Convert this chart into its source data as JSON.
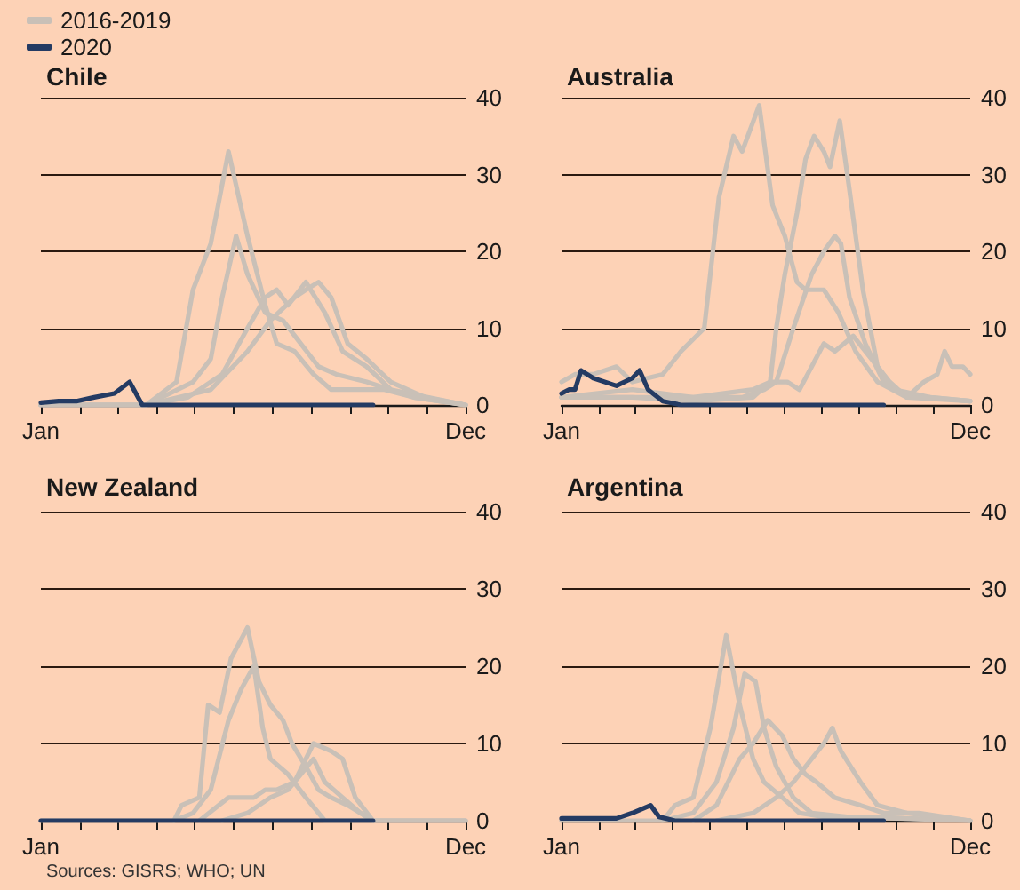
{
  "chart_data": [
    {
      "type": "line",
      "title": "Chile",
      "legend": "top left",
      "grid": "y",
      "marker": "none",
      "line_style": "solid",
      "xlim": [
        "--01-01",
        "--12-01"
      ],
      "xticks": [
        {
          "value": "--01-01",
          "label": "Jan"
        },
        {
          "value": "--02-01",
          "label": null
        },
        {
          "value": "--03-01",
          "label": null
        },
        {
          "value": "--04-01",
          "label": null
        },
        {
          "value": "--05-01",
          "label": null
        },
        {
          "value": "--06-01",
          "label": null
        },
        {
          "value": "--07-01",
          "label": null
        },
        {
          "value": "--08-01",
          "label": null
        },
        {
          "value": "--09-01",
          "label": null
        },
        {
          "value": "--10-01",
          "label": null
        },
        {
          "value": "--11-01",
          "label": null
        },
        {
          "value": "--12-01",
          "label": "Dec"
        }
      ],
      "ylim": [
        0,
        40
      ],
      "yticks": [
        0,
        10,
        20,
        30,
        40
      ],
      "series": [
        {
          "name": "2016-2019",
          "color": "#c9c0b7",
          "x": [
            "--01-01",
            "--03-24",
            "--04-17",
            "--04-30",
            "--05-14",
            "--05-28",
            "--06-12",
            "--06-26",
            "--07-05",
            "--07-19",
            "--08-03",
            "--08-17",
            "--09-05",
            "--09-28",
            "--10-21",
            "--12-01"
          ],
          "values": [
            0,
            0,
            3,
            15,
            21,
            33,
            22,
            13,
            8,
            7,
            4,
            2,
            2,
            2,
            1,
            0
          ]
        },
        {
          "color": "#c9c0b7",
          "x": [
            "--01-01",
            "--03-24",
            "--04-30",
            "--05-14",
            "--05-23",
            "--06-03",
            "--06-12",
            "--06-26",
            "--07-10",
            "--07-24",
            "--08-07",
            "--08-21",
            "--09-14",
            "--10-21",
            "--12-01"
          ],
          "values": [
            0,
            0,
            3,
            6,
            14,
            22,
            17,
            12,
            11,
            8,
            5,
            4,
            3,
            1,
            0
          ]
        },
        {
          "color": "#c9c0b7",
          "x": [
            "--01-01",
            "--03-24",
            "--04-26",
            "--05-23",
            "--06-12",
            "--06-26",
            "--07-05",
            "--07-14",
            "--07-28",
            "--08-12",
            "--08-26",
            "--09-14",
            "--10-03",
            "--12-01"
          ],
          "values": [
            0,
            0,
            1,
            4,
            10,
            14,
            15,
            13,
            16,
            12,
            7,
            5,
            2,
            0
          ]
        },
        {
          "color": "#c9c0b7",
          "x": [
            "--01-01",
            "--03-24",
            "--05-14",
            "--06-12",
            "--06-30",
            "--07-19",
            "--07-28",
            "--08-07",
            "--08-17",
            "--08-30",
            "--09-14",
            "--10-03",
            "--10-30",
            "--12-01"
          ],
          "values": [
            0,
            0,
            2,
            7,
            11,
            14,
            15,
            16,
            14,
            8,
            6,
            3,
            1,
            0
          ]
        },
        {
          "name": "2020",
          "color": "#243b63",
          "x": [
            "--01-01",
            "--01-15",
            "--01-29",
            "--02-12",
            "--02-28",
            "--03-11",
            "--03-21",
            "--04-17",
            "--09-19"
          ],
          "values": [
            0.3,
            0.5,
            0.5,
            1,
            1.5,
            3,
            0,
            0,
            0
          ]
        }
      ]
    },
    {
      "type": "line",
      "title": "Australia",
      "grid": "y",
      "marker": "none",
      "line_style": "solid",
      "xlim": [
        "--01-01",
        "--12-01"
      ],
      "xticks": [
        {
          "value": "--01-01",
          "label": "Jan"
        },
        {
          "value": "--02-01",
          "label": null
        },
        {
          "value": "--03-01",
          "label": null
        },
        {
          "value": "--04-01",
          "label": null
        },
        {
          "value": "--05-01",
          "label": null
        },
        {
          "value": "--06-01",
          "label": null
        },
        {
          "value": "--07-01",
          "label": null
        },
        {
          "value": "--08-01",
          "label": null
        },
        {
          "value": "--09-01",
          "label": null
        },
        {
          "value": "--10-01",
          "label": null
        },
        {
          "value": "--11-01",
          "label": null
        },
        {
          "value": "--12-01",
          "label": "Dec"
        }
      ],
      "ylim": [
        0,
        40
      ],
      "yticks": [
        0,
        10,
        20,
        30,
        40
      ],
      "series": [
        {
          "color": "#c9c0b7",
          "x": [
            "--01-01",
            "--01-12",
            "--01-27",
            "--02-15",
            "--02-28",
            "--03-24",
            "--04-08",
            "--04-27",
            "--05-09",
            "--05-21",
            "--05-28",
            "--06-11",
            "--06-22",
            "--07-02",
            "--07-12",
            "--07-19",
            "--08-03",
            "--08-15",
            "--08-29",
            "--09-16",
            "--10-10",
            "--10-29",
            "--12-01"
          ],
          "values": [
            3,
            4,
            4,
            5,
            3,
            4,
            7,
            10,
            27,
            35,
            33,
            39,
            26,
            22,
            16,
            15,
            15,
            12,
            7,
            3,
            1,
            1,
            0.5
          ]
        },
        {
          "color": "#c9c0b7",
          "x": [
            "--01-01",
            "--02-28",
            "--04-18",
            "--06-06",
            "--06-20",
            "--06-25",
            "--07-02",
            "--07-12",
            "--07-19",
            "--07-26",
            "--08-03",
            "--08-08",
            "--08-16",
            "--08-24",
            "--09-04",
            "--09-16",
            "--09-30",
            "--10-29",
            "--12-01"
          ],
          "values": [
            1,
            1,
            0.5,
            1,
            3,
            10,
            17,
            25,
            32,
            35,
            33,
            31,
            37,
            28,
            15,
            5,
            2,
            1,
            0.5
          ]
        },
        {
          "color": "#c9c0b7",
          "x": [
            "--01-01",
            "--02-28",
            "--05-28",
            "--06-15",
            "--06-25",
            "--07-09",
            "--07-24",
            "--08-03",
            "--08-12",
            "--08-17",
            "--08-24",
            "--09-06",
            "--09-21",
            "--10-10",
            "--12-01"
          ],
          "values": [
            1,
            1,
            1,
            2,
            3,
            10,
            17,
            20,
            22,
            21,
            14,
            8,
            3,
            1,
            0.5
          ]
        },
        {
          "color": "#c9c0b7",
          "x": [
            "--01-01",
            "--02-28",
            "--04-18",
            "--06-06",
            "--06-20",
            "--07-04",
            "--07-14",
            "--07-24",
            "--08-03",
            "--08-12",
            "--08-27",
            "--09-11",
            "--09-26",
            "--10-10",
            "--10-24",
            "--11-04",
            "--11-10",
            "--11-16",
            "--11-25",
            "--12-01"
          ],
          "values": [
            1,
            2,
            1,
            2,
            3,
            3,
            2,
            5,
            8,
            7,
            9,
            6,
            3,
            1,
            3,
            4,
            7,
            5,
            5,
            4
          ]
        },
        {
          "color": "#243b63",
          "x": [
            "--01-01",
            "--01-07",
            "--01-12",
            "--01-17",
            "--01-27",
            "--02-15",
            "--02-28",
            "--03-05",
            "--03-12",
            "--03-24",
            "--04-08",
            "--09-21"
          ],
          "values": [
            1.5,
            2,
            2,
            4.5,
            3.5,
            2.5,
            3.5,
            4.5,
            2,
            0.5,
            0,
            0
          ]
        }
      ]
    },
    {
      "type": "line",
      "title": "New Zealand",
      "grid": "y",
      "marker": "none",
      "line_style": "solid",
      "annotations": [
        "Sources: GISRS; WHO; UN"
      ],
      "xlim": [
        "--01-01",
        "--12-01"
      ],
      "xticks": [
        {
          "value": "--01-01",
          "label": "Jan"
        },
        {
          "value": "--02-01",
          "label": null
        },
        {
          "value": "--03-01",
          "label": null
        },
        {
          "value": "--04-01",
          "label": null
        },
        {
          "value": "--05-01",
          "label": null
        },
        {
          "value": "--06-01",
          "label": null
        },
        {
          "value": "--07-01",
          "label": null
        },
        {
          "value": "--08-01",
          "label": null
        },
        {
          "value": "--09-01",
          "label": null
        },
        {
          "value": "--10-01",
          "label": null
        },
        {
          "value": "--11-01",
          "label": null
        },
        {
          "value": "--12-01",
          "label": "Dec"
        }
      ],
      "ylim": [
        0,
        40
      ],
      "yticks": [
        0,
        10,
        20,
        30,
        40
      ],
      "series": [
        {
          "color": "#c9c0b7",
          "x": [
            "--01-01",
            "--04-15",
            "--04-21",
            "--05-05",
            "--05-12",
            "--05-21",
            "--05-30",
            "--06-12",
            "--06-21",
            "--06-30",
            "--07-10",
            "--07-17",
            "--07-28",
            "--08-07",
            "--08-17",
            "--08-30",
            "--09-19",
            "--12-01"
          ],
          "values": [
            0,
            0,
            2,
            3,
            15,
            14,
            21,
            25,
            18,
            15,
            13,
            10,
            7,
            4,
            3,
            2,
            0,
            0
          ]
        },
        {
          "color": "#c9c0b7",
          "x": [
            "--04-15",
            "--04-30",
            "--05-14",
            "--05-28",
            "--06-07",
            "--06-17",
            "--06-24",
            "--06-30",
            "--07-14",
            "--07-28",
            "--08-12",
            "--12-01"
          ],
          "values": [
            0,
            1,
            4,
            13,
            17,
            20,
            12,
            8,
            6,
            3,
            0,
            0
          ]
        },
        {
          "color": "#c9c0b7",
          "x": [
            "--05-05",
            "--05-28",
            "--06-17",
            "--06-26",
            "--07-05",
            "--07-19",
            "--08-03",
            "--08-17",
            "--08-26",
            "--09-05",
            "--09-19"
          ],
          "values": [
            0,
            3,
            3,
            4,
            4,
            5,
            10,
            9,
            8,
            3,
            0
          ]
        },
        {
          "color": "#c9c0b7",
          "x": [
            "--05-23",
            "--06-12",
            "--06-30",
            "--07-14",
            "--07-24",
            "--08-03",
            "--08-12",
            "--08-26",
            "--09-09",
            "--09-19",
            "--12-01"
          ],
          "values": [
            0,
            1,
            3,
            4,
            6,
            8,
            5,
            3,
            1,
            0,
            0
          ]
        },
        {
          "color": "#243b63",
          "x": [
            "--01-01",
            "--09-19"
          ],
          "values": [
            0,
            0
          ]
        }
      ]
    },
    {
      "type": "line",
      "title": "Argentina",
      "grid": "y",
      "marker": "none",
      "line_style": "solid",
      "xlim": [
        "--01-01",
        "--12-01"
      ],
      "xticks": [
        {
          "value": "--01-01",
          "label": "Jan"
        },
        {
          "value": "--02-01",
          "label": null
        },
        {
          "value": "--03-01",
          "label": null
        },
        {
          "value": "--04-01",
          "label": null
        },
        {
          "value": "--05-01",
          "label": null
        },
        {
          "value": "--06-01",
          "label": null
        },
        {
          "value": "--07-01",
          "label": null
        },
        {
          "value": "--08-01",
          "label": null
        },
        {
          "value": "--09-01",
          "label": null
        },
        {
          "value": "--10-01",
          "label": null
        },
        {
          "value": "--11-01",
          "label": null
        },
        {
          "value": "--12-01",
          "label": "Dec"
        }
      ],
      "ylim": [
        0,
        40
      ],
      "yticks": [
        0,
        10,
        20,
        30,
        40
      ],
      "series": [
        {
          "color": "#c9c0b7",
          "x": [
            "--01-01",
            "--03-24",
            "--04-03",
            "--04-18",
            "--05-02",
            "--05-15",
            "--05-26",
            "--06-06",
            "--06-15",
            "--06-30",
            "--07-14",
            "--08-03",
            "--09-11",
            "--12-01"
          ],
          "values": [
            0,
            0,
            2,
            3,
            12,
            24,
            15,
            8,
            5,
            3,
            1,
            0.5,
            0.5,
            0
          ]
        },
        {
          "color": "#c9c0b7",
          "x": [
            "--03-24",
            "--04-18",
            "--05-07",
            "--05-21",
            "--05-30",
            "--06-08",
            "--06-15",
            "--06-25",
            "--07-09",
            "--07-24",
            "--08-22",
            "--12-01"
          ],
          "values": [
            0,
            1,
            5,
            12,
            19,
            18,
            12,
            7,
            3,
            1,
            0.5,
            0
          ]
        },
        {
          "color": "#c9c0b7",
          "x": [
            "--04-18",
            "--05-07",
            "--05-26",
            "--06-06",
            "--06-18",
            "--06-30",
            "--07-09",
            "--07-19",
            "--07-28",
            "--08-12",
            "--09-02",
            "--09-21",
            "--10-20",
            "--12-01"
          ],
          "values": [
            0,
            2,
            8,
            10,
            13,
            11,
            8,
            6,
            5,
            3,
            2,
            1,
            1,
            0
          ]
        },
        {
          "color": "#c9c0b7",
          "x": [
            "--05-07",
            "--06-06",
            "--06-25",
            "--07-09",
            "--07-24",
            "--08-03",
            "--08-10",
            "--08-17",
            "--09-02",
            "--09-16",
            "--10-10",
            "--12-01"
          ],
          "values": [
            0,
            1,
            3,
            5,
            8,
            10,
            12,
            9,
            5,
            2,
            1,
            0
          ]
        },
        {
          "color": "#243b63",
          "x": [
            "--01-01",
            "--02-15",
            "--02-28",
            "--03-14",
            "--03-21",
            "--04-03",
            "--09-21"
          ],
          "values": [
            0.3,
            0.3,
            1,
            2,
            0.5,
            0,
            0
          ]
        }
      ]
    }
  ]
}
